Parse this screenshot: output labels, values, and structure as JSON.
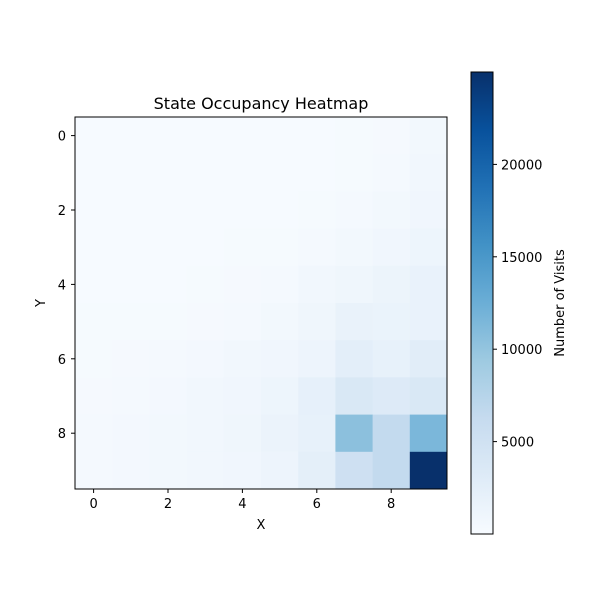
{
  "chart_data": {
    "type": "heatmap",
    "title": "State Occupancy Heatmap",
    "xlabel": "X",
    "ylabel": "Y",
    "x_ticks": [
      0,
      2,
      4,
      6,
      8
    ],
    "y_ticks": [
      0,
      2,
      4,
      6,
      8
    ],
    "colormap": "Blues",
    "colorbar": {
      "label": "Number of Visits",
      "min": 0,
      "max": 25000,
      "ticks": [
        5000,
        10000,
        15000,
        20000
      ]
    },
    "grid": false,
    "rows": 10,
    "cols": 10,
    "values": [
      [
        100,
        100,
        100,
        100,
        100,
        100,
        150,
        200,
        300,
        600
      ],
      [
        100,
        100,
        100,
        100,
        100,
        100,
        150,
        250,
        400,
        700
      ],
      [
        100,
        100,
        100,
        100,
        150,
        150,
        250,
        400,
        600,
        900
      ],
      [
        100,
        100,
        100,
        150,
        200,
        250,
        400,
        600,
        900,
        1200
      ],
      [
        150,
        150,
        150,
        200,
        300,
        400,
        700,
        1000,
        1400,
        1700
      ],
      [
        200,
        200,
        250,
        300,
        400,
        600,
        1000,
        1800,
        1600,
        1700
      ],
      [
        250,
        300,
        400,
        500,
        700,
        900,
        1300,
        2500,
        2000,
        2800
      ],
      [
        300,
        400,
        500,
        700,
        900,
        1200,
        2100,
        3800,
        3300,
        3800
      ],
      [
        400,
        500,
        600,
        800,
        1000,
        1500,
        2000,
        10500,
        6500,
        11500
      ],
      [
        400,
        500,
        600,
        700,
        900,
        1300,
        2400,
        5200,
        6500,
        25000
      ]
    ]
  }
}
